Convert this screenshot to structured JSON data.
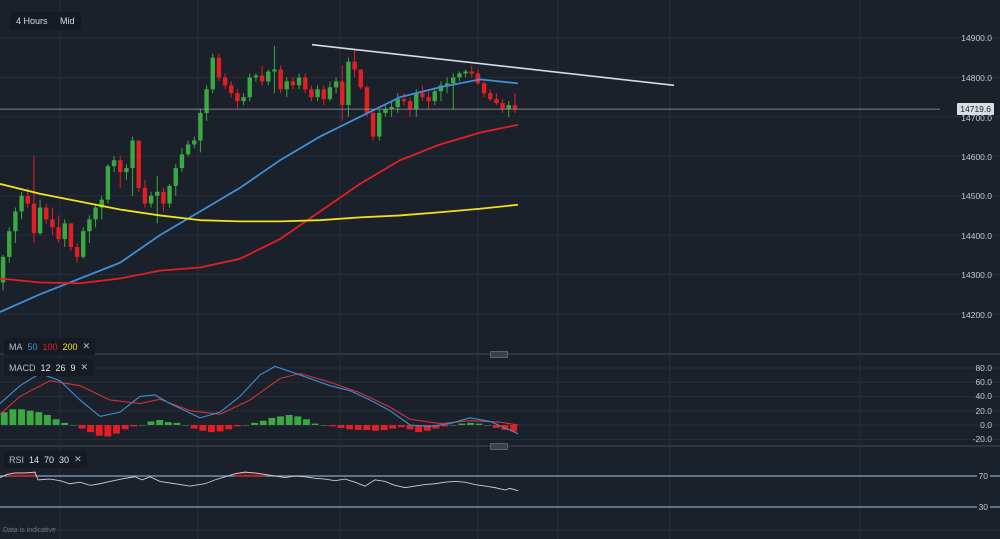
{
  "toolbar": {
    "timeframe": "4 Hours",
    "price_type": "Mid"
  },
  "legends": {
    "ma": {
      "name": "MA",
      "p1": "50",
      "p2": "100",
      "p3": "200",
      "close": "✕",
      "colors": {
        "p1": "#3d8fd6",
        "p2": "#e31e24",
        "p3": "#f2e21a"
      }
    },
    "macd": {
      "name": "MACD",
      "p1": "12",
      "p2": "26",
      "p3": "9",
      "close": "✕"
    },
    "rsi": {
      "name": "RSI",
      "p1": "14",
      "p2": "70",
      "p3": "30",
      "close": "✕"
    }
  },
  "price_axis": {
    "labels": [
      "14900.0",
      "14800.0",
      "14700.0",
      "14600.0",
      "14500.0",
      "14400.0",
      "14300.0",
      "14200.0"
    ],
    "current_price": "14719.6"
  },
  "macd_axis": {
    "labels": [
      "80.0",
      "60.0",
      "40.0",
      "20.0",
      "0.0",
      "-20.0"
    ]
  },
  "rsi_axis": {
    "labels": [
      "70",
      "30"
    ]
  },
  "footnote": "Data is indicative",
  "colors": {
    "background": "#1b212b",
    "up": "#3aa843",
    "down": "#e31e24",
    "ma50": "#3d8fd6",
    "ma100": "#e31e24",
    "ma200": "#f2e21a",
    "trendline": "#d8dbe0",
    "macd_line": "#3d8fd6",
    "signal_line": "#d0333a",
    "rsi_line": "#c8ccd2",
    "rsi_band": "#8aa4c0"
  },
  "chart_data": [
    {
      "type": "candlestick",
      "title": "4 Hours Mid",
      "ylim": [
        14150,
        14950
      ],
      "yticks": [
        14200,
        14300,
        14400,
        14500,
        14600,
        14700,
        14800,
        14900
      ],
      "current_price": 14719.6,
      "candles": [
        [
          14280,
          14350,
          14260,
          14345
        ],
        [
          14345,
          14420,
          14330,
          14410
        ],
        [
          14410,
          14470,
          14380,
          14460
        ],
        [
          14460,
          14510,
          14440,
          14500
        ],
        [
          14500,
          14520,
          14470,
          14480
        ],
        [
          14480,
          14600,
          14380,
          14405
        ],
        [
          14405,
          14490,
          14400,
          14470
        ],
        [
          14470,
          14480,
          14430,
          14440
        ],
        [
          14440,
          14470,
          14400,
          14420
        ],
        [
          14420,
          14450,
          14380,
          14390
        ],
        [
          14390,
          14440,
          14370,
          14430
        ],
        [
          14430,
          14430,
          14360,
          14370
        ],
        [
          14370,
          14380,
          14330,
          14345
        ],
        [
          14345,
          14420,
          14340,
          14410
        ],
        [
          14410,
          14450,
          14380,
          14440
        ],
        [
          14440,
          14480,
          14420,
          14470
        ],
        [
          14470,
          14500,
          14440,
          14490
        ],
        [
          14490,
          14580,
          14480,
          14575
        ],
        [
          14575,
          14600,
          14560,
          14590
        ],
        [
          14590,
          14600,
          14520,
          14560
        ],
        [
          14560,
          14580,
          14540,
          14570
        ],
        [
          14570,
          14650,
          14500,
          14640
        ],
        [
          14640,
          14640,
          14510,
          14520
        ],
        [
          14520,
          14540,
          14470,
          14480
        ],
        [
          14480,
          14510,
          14470,
          14500
        ],
        [
          14500,
          14550,
          14430,
          14510
        ],
        [
          14510,
          14520,
          14460,
          14480
        ],
        [
          14480,
          14530,
          14470,
          14525
        ],
        [
          14525,
          14580,
          14500,
          14570
        ],
        [
          14570,
          14620,
          14560,
          14605
        ],
        [
          14605,
          14640,
          14600,
          14630
        ],
        [
          14630,
          14650,
          14620,
          14640
        ],
        [
          14640,
          14720,
          14610,
          14710
        ],
        [
          14710,
          14780,
          14690,
          14770
        ],
        [
          14770,
          14860,
          14760,
          14850
        ],
        [
          14850,
          14860,
          14790,
          14800
        ],
        [
          14800,
          14810,
          14770,
          14780
        ],
        [
          14780,
          14790,
          14750,
          14760
        ],
        [
          14760,
          14770,
          14720,
          14740
        ],
        [
          14740,
          14760,
          14730,
          14750
        ],
        [
          14750,
          14810,
          14740,
          14800
        ],
        [
          14800,
          14810,
          14790,
          14805
        ],
        [
          14805,
          14830,
          14780,
          14790
        ],
        [
          14790,
          14820,
          14780,
          14815
        ],
        [
          14815,
          14880,
          14760,
          14820
        ],
        [
          14820,
          14830,
          14760,
          14770
        ],
        [
          14770,
          14800,
          14750,
          14790
        ],
        [
          14790,
          14800,
          14770,
          14780
        ],
        [
          14780,
          14810,
          14770,
          14800
        ],
        [
          14800,
          14810,
          14760,
          14770
        ],
        [
          14770,
          14780,
          14740,
          14750
        ],
        [
          14750,
          14780,
          14740,
          14770
        ],
        [
          14770,
          14780,
          14730,
          14745
        ],
        [
          14745,
          14790,
          14740,
          14775
        ],
        [
          14775,
          14800,
          14760,
          14790
        ],
        [
          14790,
          14830,
          14690,
          14730
        ],
        [
          14730,
          14850,
          14700,
          14840
        ],
        [
          14840,
          14870,
          14800,
          14820
        ],
        [
          14820,
          14820,
          14770,
          14775
        ],
        [
          14775,
          14780,
          14700,
          14710
        ],
        [
          14710,
          14720,
          14640,
          14650
        ],
        [
          14650,
          14720,
          14640,
          14710
        ],
        [
          14710,
          14730,
          14700,
          14720
        ],
        [
          14720,
          14740,
          14700,
          14725
        ],
        [
          14725,
          14760,
          14710,
          14745
        ],
        [
          14745,
          14760,
          14730,
          14740
        ],
        [
          14740,
          14750,
          14700,
          14720
        ],
        [
          14720,
          14770,
          14700,
          14760
        ],
        [
          14760,
          14780,
          14740,
          14750
        ],
        [
          14750,
          14770,
          14720,
          14740
        ],
        [
          14740,
          14770,
          14730,
          14765
        ],
        [
          14765,
          14790,
          14740,
          14780
        ],
        [
          14780,
          14800,
          14760,
          14785
        ],
        [
          14785,
          14810,
          14720,
          14800
        ],
        [
          14800,
          14815,
          14790,
          14810
        ],
        [
          14810,
          14820,
          14800,
          14815
        ],
        [
          14815,
          14830,
          14800,
          14810
        ],
        [
          14810,
          14820,
          14780,
          14785
        ],
        [
          14785,
          14790,
          14750,
          14760
        ],
        [
          14760,
          14770,
          14740,
          14745
        ],
        [
          14745,
          14760,
          14730,
          14735
        ],
        [
          14735,
          14745,
          14710,
          14720
        ],
        [
          14720,
          14740,
          14700,
          14730
        ],
        [
          14730,
          14760,
          14710,
          14719.6
        ]
      ],
      "series": [
        {
          "name": "MA 50",
          "color": "#3d8fd6",
          "points": [
            [
              0,
              14205
            ],
            [
              40,
              14250
            ],
            [
              80,
              14290
            ],
            [
              120,
              14330
            ],
            [
              160,
              14400
            ],
            [
              200,
              14460
            ],
            [
              240,
              14520
            ],
            [
              280,
              14590
            ],
            [
              320,
              14650
            ],
            [
              360,
              14700
            ],
            [
              400,
              14750
            ],
            [
              440,
              14775
            ],
            [
              480,
              14795
            ],
            [
              518,
              14785
            ]
          ]
        },
        {
          "name": "MA 100",
          "color": "#e31e24",
          "points": [
            [
              0,
              14290
            ],
            [
              40,
              14280
            ],
            [
              80,
              14278
            ],
            [
              120,
              14290
            ],
            [
              160,
              14310
            ],
            [
              200,
              14318
            ],
            [
              240,
              14340
            ],
            [
              280,
              14390
            ],
            [
              320,
              14460
            ],
            [
              360,
              14530
            ],
            [
              400,
              14590
            ],
            [
              440,
              14630
            ],
            [
              480,
              14660
            ],
            [
              518,
              14680
            ]
          ]
        },
        {
          "name": "MA 200",
          "color": "#f2e21a",
          "points": [
            [
              0,
              14530
            ],
            [
              40,
              14505
            ],
            [
              80,
              14485
            ],
            [
              120,
              14465
            ],
            [
              160,
              14450
            ],
            [
              200,
              14438
            ],
            [
              240,
              14435
            ],
            [
              280,
              14435
            ],
            [
              320,
              14438
            ],
            [
              360,
              14445
            ],
            [
              400,
              14450
            ],
            [
              440,
              14458
            ],
            [
              480,
              14467
            ],
            [
              518,
              14477
            ]
          ]
        },
        {
          "name": "Trendline",
          "color": "#d8dbe0",
          "points": [
            [
              312,
              14883
            ],
            [
              674,
              14780
            ]
          ]
        }
      ]
    },
    {
      "type": "macd",
      "params": [
        12,
        26,
        9
      ],
      "yticks": [
        80,
        60,
        40,
        20,
        0,
        -20
      ],
      "macd_line": [
        [
          0,
          30
        ],
        [
          20,
          55
        ],
        [
          40,
          72
        ],
        [
          60,
          62
        ],
        [
          80,
          35
        ],
        [
          100,
          12
        ],
        [
          120,
          18
        ],
        [
          140,
          40
        ],
        [
          155,
          42
        ],
        [
          170,
          30
        ],
        [
          200,
          10
        ],
        [
          220,
          18
        ],
        [
          240,
          40
        ],
        [
          260,
          70
        ],
        [
          275,
          82
        ],
        [
          300,
          70
        ],
        [
          330,
          55
        ],
        [
          350,
          48
        ],
        [
          370,
          35
        ],
        [
          390,
          20
        ],
        [
          410,
          0
        ],
        [
          430,
          -2
        ],
        [
          450,
          2
        ],
        [
          470,
          10
        ],
        [
          490,
          5
        ],
        [
          518,
          -12
        ]
      ],
      "signal_line": [
        [
          0,
          15
        ],
        [
          20,
          40
        ],
        [
          50,
          62
        ],
        [
          80,
          55
        ],
        [
          110,
          35
        ],
        [
          140,
          30
        ],
        [
          160,
          36
        ],
        [
          190,
          20
        ],
        [
          220,
          15
        ],
        [
          250,
          35
        ],
        [
          280,
          65
        ],
        [
          300,
          72
        ],
        [
          330,
          60
        ],
        [
          360,
          45
        ],
        [
          390,
          25
        ],
        [
          410,
          8
        ],
        [
          440,
          2
        ],
        [
          470,
          6
        ],
        [
          500,
          4
        ],
        [
          518,
          0
        ]
      ],
      "histogram": [
        18,
        22,
        22,
        20,
        18,
        14,
        8,
        3,
        0,
        -5,
        -10,
        -15,
        -16,
        -12,
        -6,
        -2,
        0,
        5,
        7,
        4,
        3,
        0,
        -5,
        -8,
        -10,
        -9,
        -6,
        -2,
        0,
        3,
        6,
        10,
        12,
        14,
        12,
        8,
        2,
        0,
        -2,
        -4,
        -6,
        -7,
        -7,
        -8,
        -7,
        -5,
        -3,
        -6,
        -10,
        -8,
        -5,
        -2,
        0,
        2,
        3,
        2,
        0,
        -4,
        -7,
        -9
      ]
    },
    {
      "type": "line",
      "name": "RSI",
      "params": [
        14,
        70,
        30
      ],
      "yticks": [
        70,
        30
      ],
      "points": [
        [
          0,
          68
        ],
        [
          7,
          72
        ],
        [
          15,
          74
        ],
        [
          25,
          74
        ],
        [
          35,
          75
        ],
        [
          38,
          65
        ],
        [
          50,
          66
        ],
        [
          60,
          64
        ],
        [
          70,
          60
        ],
        [
          80,
          62
        ],
        [
          90,
          58
        ],
        [
          100,
          60
        ],
        [
          110,
          63
        ],
        [
          125,
          67
        ],
        [
          135,
          69
        ],
        [
          142,
          65
        ],
        [
          150,
          69
        ],
        [
          160,
          63
        ],
        [
          175,
          60
        ],
        [
          190,
          57
        ],
        [
          205,
          60
        ],
        [
          215,
          65
        ],
        [
          225,
          69
        ],
        [
          235,
          73
        ],
        [
          245,
          75
        ],
        [
          255,
          74
        ],
        [
          265,
          72
        ],
        [
          275,
          70
        ],
        [
          285,
          68
        ],
        [
          295,
          70
        ],
        [
          305,
          69
        ],
        [
          315,
          67
        ],
        [
          325,
          66
        ],
        [
          335,
          64
        ],
        [
          345,
          66
        ],
        [
          355,
          62
        ],
        [
          365,
          57
        ],
        [
          375,
          65
        ],
        [
          385,
          63
        ],
        [
          395,
          58
        ],
        [
          405,
          55
        ],
        [
          415,
          57
        ],
        [
          425,
          59
        ],
        [
          435,
          60
        ],
        [
          445,
          62
        ],
        [
          455,
          63
        ],
        [
          465,
          62
        ],
        [
          475,
          59
        ],
        [
          485,
          57
        ],
        [
          495,
          55
        ],
        [
          505,
          52
        ],
        [
          510,
          54
        ],
        [
          518,
          51
        ]
      ]
    }
  ]
}
